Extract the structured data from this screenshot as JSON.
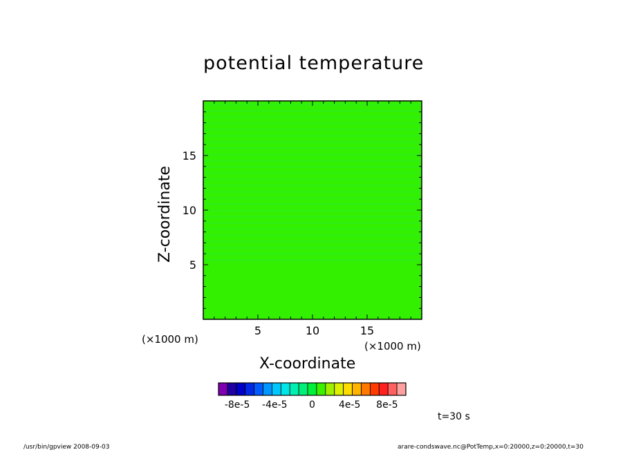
{
  "chart_data": {
    "type": "heatmap",
    "title": "potential temperature",
    "xlabel": "X-coordinate",
    "ylabel": "Z-coordinate",
    "x_unit": "(×1000 m)",
    "xlim": [
      0,
      20
    ],
    "ylim": [
      0,
      20
    ],
    "x_ticks": [
      5,
      10,
      15
    ],
    "y_ticks": [
      5,
      10,
      15
    ],
    "x_tick_labels": [
      "5",
      "10",
      "15"
    ],
    "y_tick_labels": [
      "5",
      "10",
      "15"
    ],
    "field_note": "nearly uniform field near 0",
    "colorbar": {
      "colors": [
        "#7f00b0",
        "#2000a0",
        "#0000c8",
        "#0028e6",
        "#005aff",
        "#0096ff",
        "#00c8ff",
        "#00e6e6",
        "#00f0b4",
        "#00f078",
        "#00f03c",
        "#3cf000",
        "#a0f000",
        "#dcf000",
        "#ffdc00",
        "#ffb400",
        "#ff7800",
        "#ff3c00",
        "#ff2020",
        "#ff6060",
        "#ffa0a0"
      ],
      "tick_labels": [
        "-8e-5",
        "-4e-5",
        "0",
        "4e-5",
        "8e-5"
      ],
      "tick_values": [
        -8e-05,
        -4e-05,
        0,
        4e-05,
        8e-05
      ]
    }
  },
  "annotations": {
    "timestamp": "t=30 s",
    "footer_left": "/usr/bin/gpview   2008-09-03",
    "footer_right": "arare-condswave.nc@PotTemp,x=0:20000,z=0:20000,t=30"
  }
}
